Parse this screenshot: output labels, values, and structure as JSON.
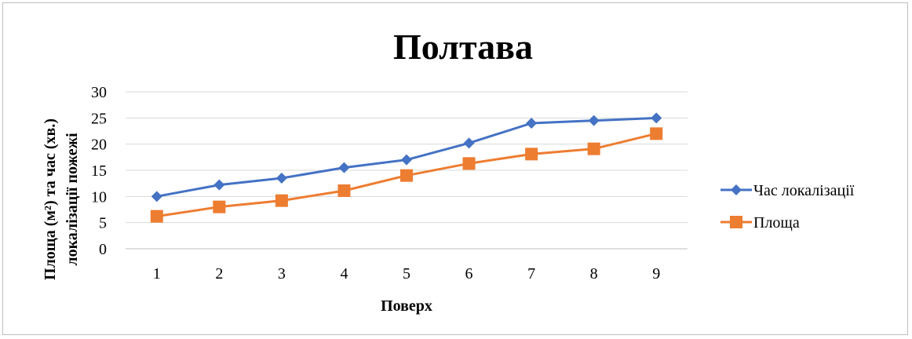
{
  "chart_data": {
    "type": "line",
    "title": "Полтава",
    "xlabel": "Поверх",
    "ylabel_line1": "Площа (м²) та час (хв.)",
    "ylabel_line2": "локалізації пожежі",
    "categories": [
      "1",
      "2",
      "3",
      "4",
      "5",
      "6",
      "7",
      "8",
      "9"
    ],
    "yticks": [
      "0",
      "5",
      "10",
      "15",
      "20",
      "25",
      "30"
    ],
    "ylim": [
      0,
      30
    ],
    "grid": true,
    "legend_position": "right",
    "series": [
      {
        "name": "Час локалізації",
        "color": "#4472c4",
        "marker": "diamond",
        "values": [
          10,
          12.2,
          13.5,
          15.5,
          17,
          20.2,
          24,
          24.5,
          25
        ]
      },
      {
        "name": "Площа",
        "color": "#ed7d31",
        "marker": "square",
        "values": [
          6.2,
          8,
          9.2,
          11.1,
          14,
          16.3,
          18.1,
          19.1,
          22
        ]
      }
    ]
  }
}
